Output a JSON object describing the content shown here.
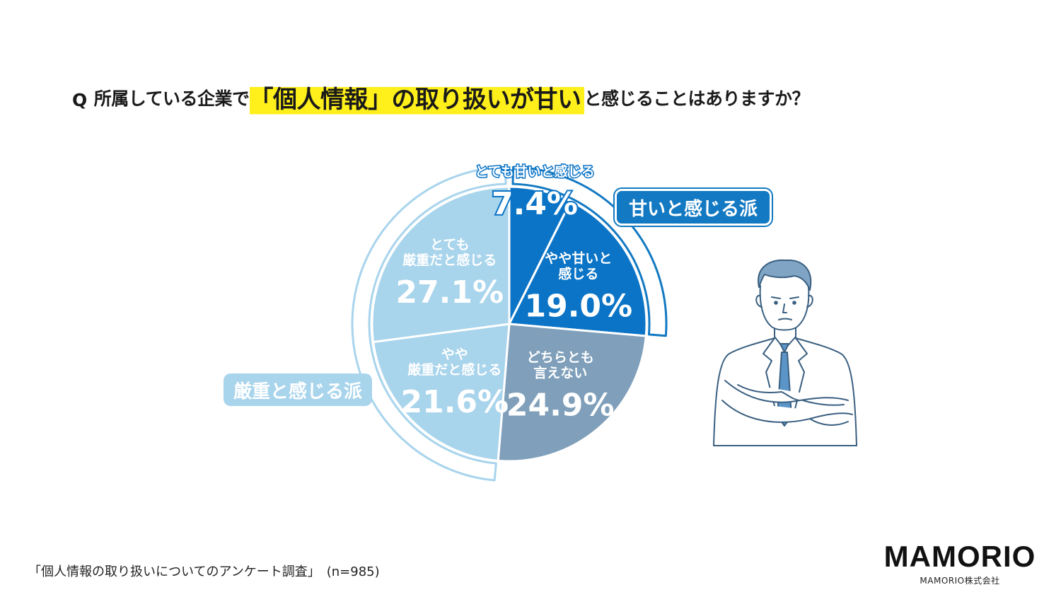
{
  "question": {
    "mark": "Q",
    "pre": "所属している企業で",
    "highlight": "「個人情報」の取り扱いが甘い",
    "post": "と感じることはありますか？"
  },
  "chart_data": {
    "type": "pie",
    "unit": "%",
    "slices": [
      {
        "label_lines": [
          "とても甘いと感じる"
        ],
        "value": 7.4,
        "color": "#0b74c6",
        "text_color": "#ffffff"
      },
      {
        "label_lines": [
          "やや甘いと",
          "感じる"
        ],
        "value": 19.0,
        "color": "#0b74c6",
        "text_color": "#ffffff"
      },
      {
        "label_lines": [
          "どちらとも",
          "言えない"
        ],
        "value": 24.9,
        "color": "#7f9fba",
        "text_color": "#ffffff"
      },
      {
        "label_lines": [
          "やや",
          "厳重だと感じる"
        ],
        "value": 21.6,
        "color": "#a8d4ec",
        "text_color": "#ffffff"
      },
      {
        "label_lines": [
          "とても",
          "厳重だと感じる"
        ],
        "value": 27.1,
        "color": "#a8d4ec",
        "text_color": "#ffffff"
      }
    ],
    "value_labels": [
      "7.4%",
      "19.0%",
      "24.9%",
      "21.6%",
      "27.1%"
    ],
    "groups": [
      {
        "name": "甘いと感じる派",
        "color": "#1279c2"
      },
      {
        "name": "厳重と感じる派",
        "color": "#a8d4ec"
      }
    ]
  },
  "footer": {
    "survey": "「個人情報の取り扱いについてのアンケート調査」　(n=985)"
  },
  "logo": {
    "name": "MAMORIO",
    "company": "MAMORIO株式会社"
  }
}
